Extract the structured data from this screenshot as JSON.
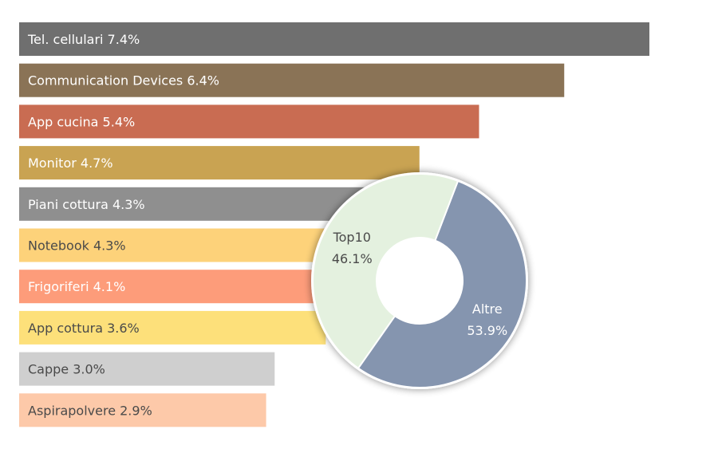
{
  "chart_data": [
    {
      "type": "bar",
      "orientation": "horizontal",
      "categories": [
        "Tel. cellulari",
        "Communication Devices",
        "App cucina",
        "Monitor",
        "Piani cottura",
        "Notebook",
        "Frigoriferi",
        "App cottura",
        "Cappe",
        "Aspirapolvere"
      ],
      "values": [
        7.4,
        6.4,
        5.4,
        4.7,
        4.3,
        4.3,
        4.1,
        3.6,
        3.0,
        2.9
      ],
      "data_labels": [
        "Tel. cellulari 7.4%",
        "Communication Devices 6.4%",
        "App cucina 5.4%",
        "Monitor 4.7%",
        "Piani cottura 4.3%",
        "Notebook 4.3%",
        "Frigoriferi 4.1%",
        "App cottura 3.6%",
        "Cappe 3.0%",
        "Aspirapolvere 2.9%"
      ],
      "colors": [
        "#6f6f6f",
        "#8a7356",
        "#c96c52",
        "#c9a352",
        "#8f8f8f",
        "#fdd27a",
        "#fd9c7a",
        "#fde07a",
        "#cfcfcf",
        "#fdc9a9"
      ],
      "label_colors": [
        "#ffffff",
        "#ffffff",
        "#ffffff",
        "#ffffff",
        "#ffffff",
        "#4a4a4a",
        "#ffffff",
        "#4a4a4a",
        "#4a4a4a",
        "#4a4a4a"
      ],
      "unit": "%",
      "xlim": [
        0,
        7.4
      ],
      "grid": false,
      "legend": "none"
    },
    {
      "type": "pie",
      "style": "donut",
      "labels": [
        "Top10",
        "Altre"
      ],
      "values": [
        46.1,
        53.9
      ],
      "value_labels": [
        "46.1%",
        "53.9%"
      ],
      "colors": [
        "#e4f1df",
        "#8595af"
      ],
      "label_colors": [
        "#4a4a4a",
        "#ffffff"
      ],
      "legend": "none"
    }
  ]
}
